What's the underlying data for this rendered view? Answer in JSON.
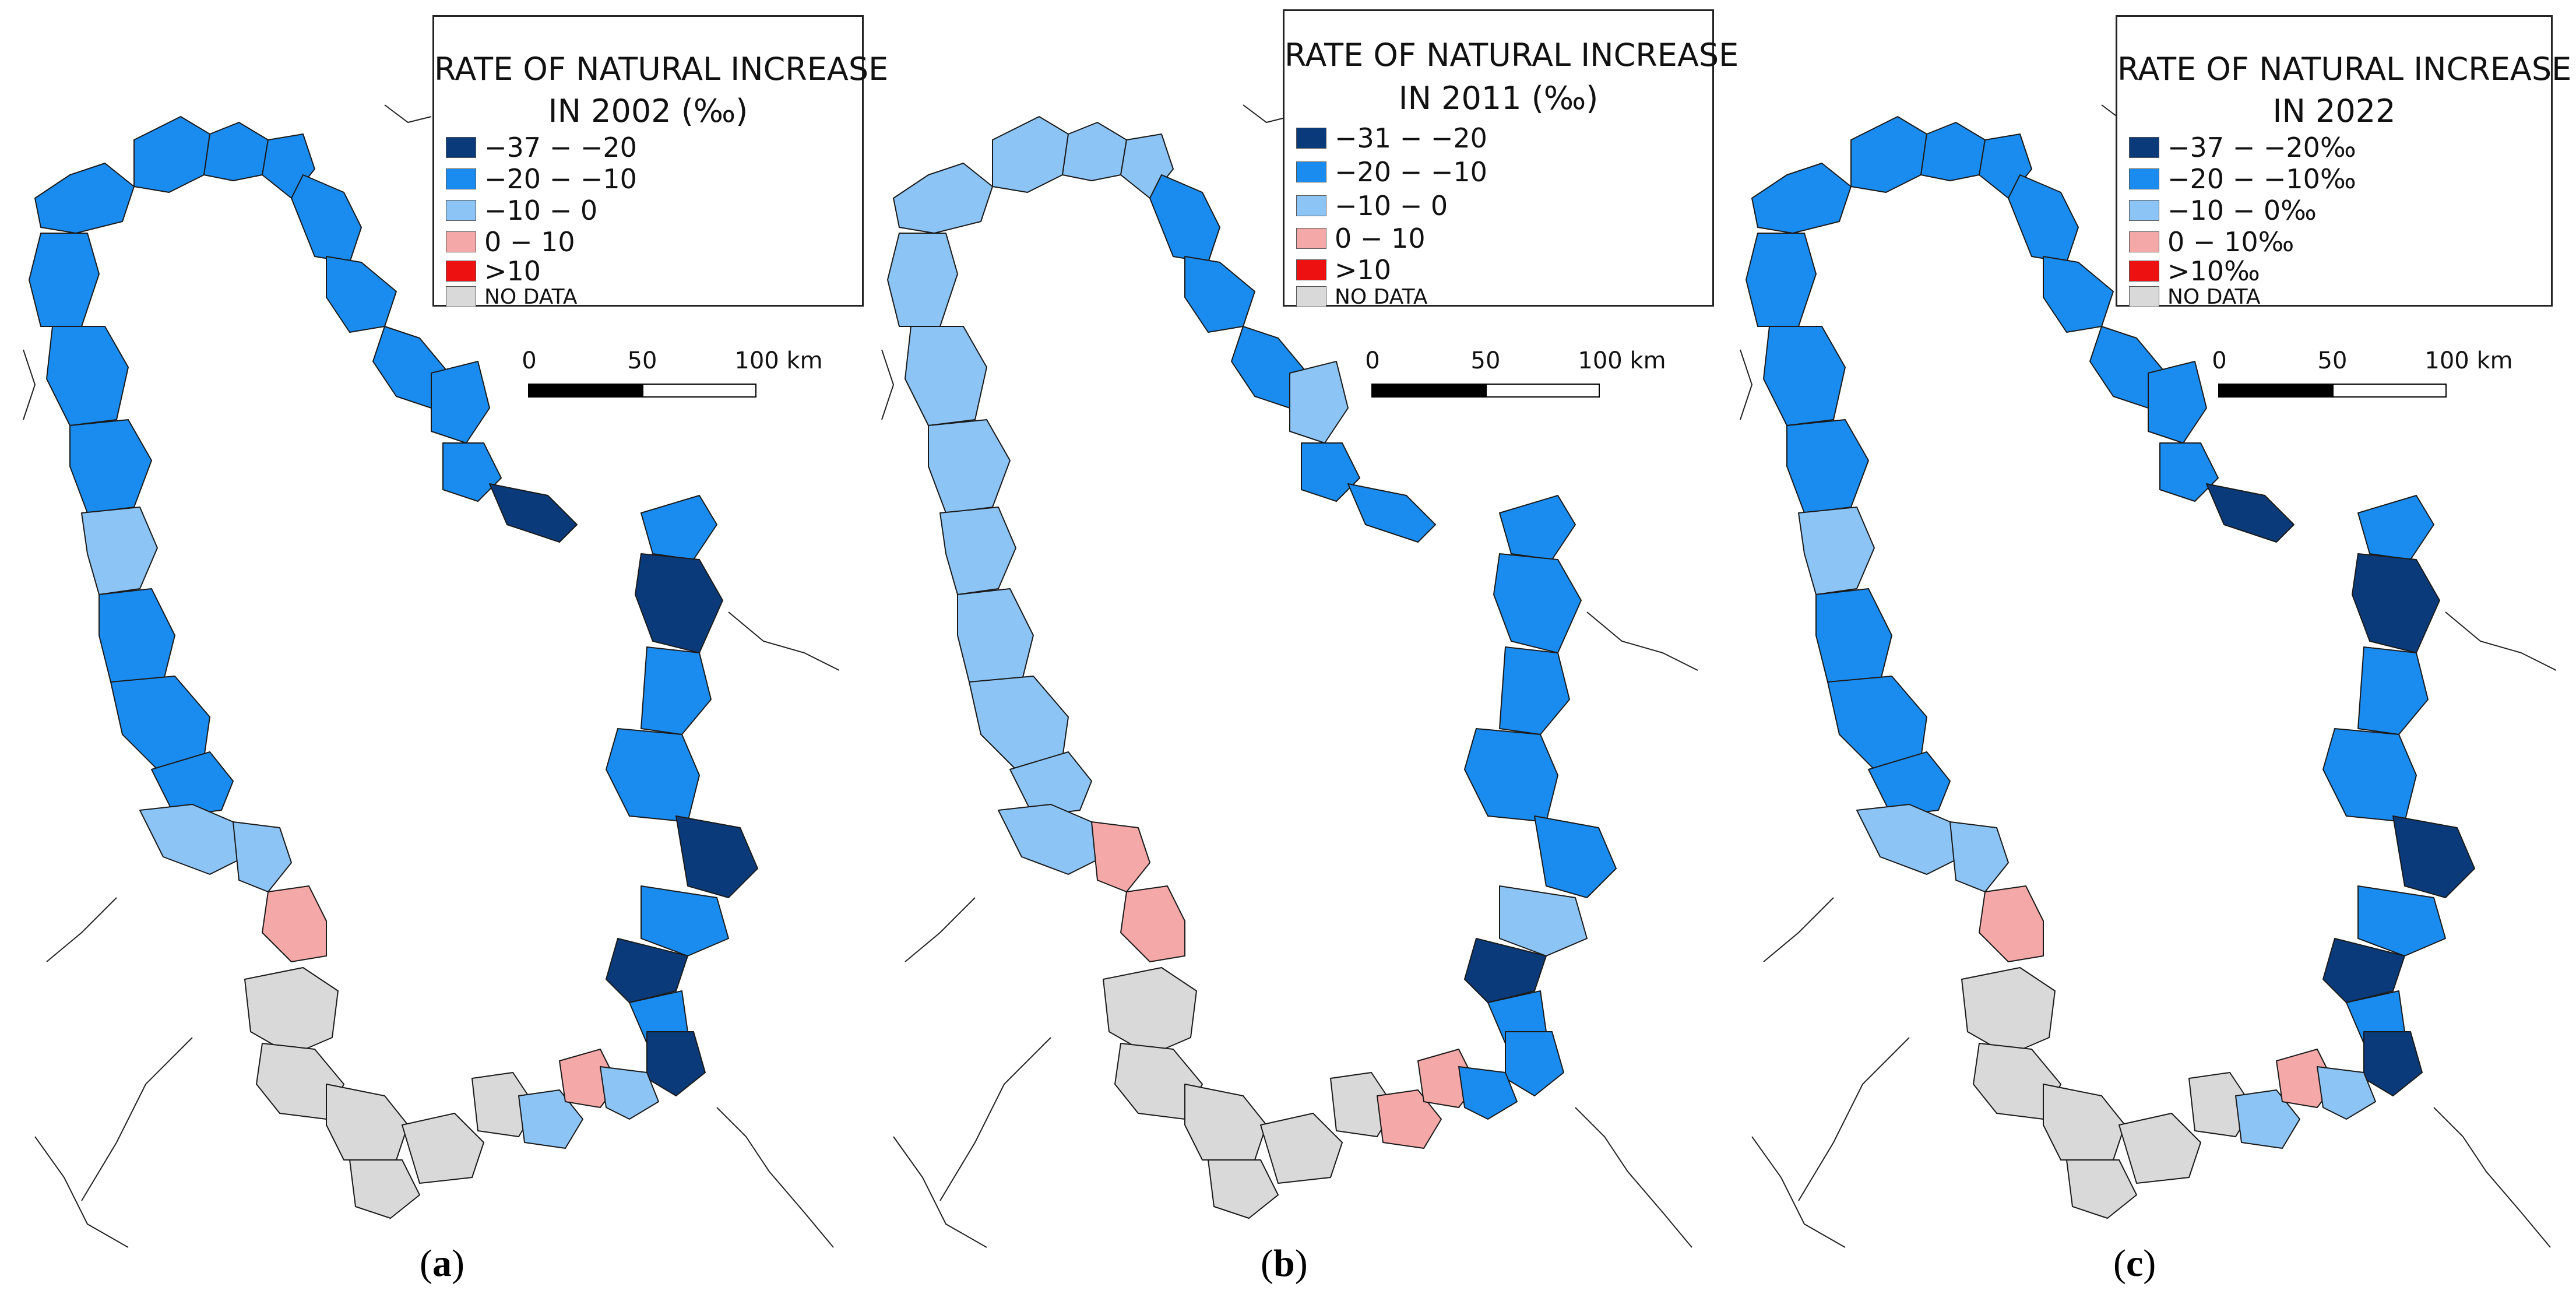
{
  "colors": {
    "class1": "#0a3a7a",
    "class2": "#1a8cf0",
    "class3": "#8cc4f5",
    "class4": "#f5a8a8",
    "class5": "#ee1111",
    "no_data": "#d9d9d9",
    "border": "#1a1a1a"
  },
  "scale": {
    "zero": "0",
    "mid": "50",
    "max": "100 km"
  },
  "panels": [
    {
      "caption_open": "(",
      "caption_letter": "a",
      "caption_close": ")",
      "title_line1": "RATE OF NATURAL INCREASE",
      "title_line2": "IN 2002 (‰)",
      "legend": [
        "−37 − −20",
        "−20 − −10",
        "−10 − 0",
        "0 − 10",
        ">10",
        "NO DATA"
      ]
    },
    {
      "caption_open": "(",
      "caption_letter": "b",
      "caption_close": ")",
      "title_line1": "RATE OF NATURAL INCREASE",
      "title_line2": "IN 2011 (‰)",
      "legend": [
        "−31 − −20",
        "−20 − −10",
        "−10 − 0",
        "0 − 10",
        ">10",
        "NO DATA"
      ]
    },
    {
      "caption_open": "(",
      "caption_letter": "c",
      "caption_close": ")",
      "title_line1": "RATE OF NATURAL INCREASE",
      "title_line2": "IN 2022",
      "legend": [
        "−37 − −20‰",
        "−20 − −10‰",
        "−10 − 0‰",
        "0 − 10‰",
        ">10‰",
        "NO DATA"
      ]
    }
  ]
}
